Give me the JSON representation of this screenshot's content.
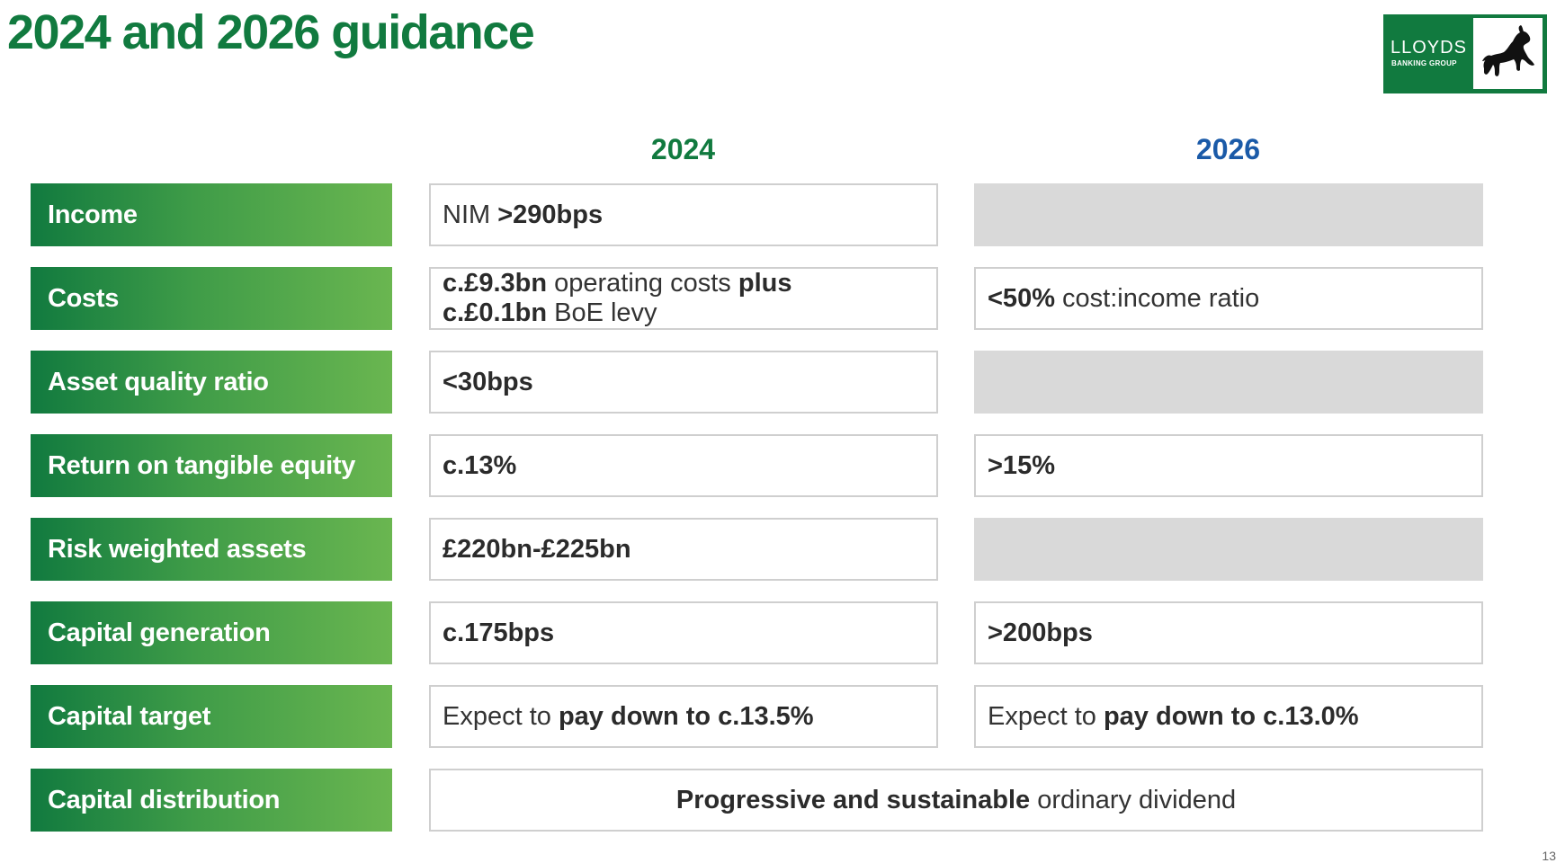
{
  "slide": {
    "title": "2024 and 2026 guidance",
    "page_number": "13"
  },
  "logo": {
    "name": "LLOYDS",
    "subtitle": "BANKING GROUP",
    "icon": "black-horse-icon"
  },
  "columns": {
    "y2024": "2024",
    "y2026": "2026"
  },
  "colors": {
    "primary_green": "#117a3f",
    "light_green": "#6ab650",
    "blue_heading": "#1a5aa8",
    "empty_cell": "#d9d9d9",
    "cell_border": "#cfcfcf"
  },
  "rows": [
    {
      "label": "Income",
      "c2024": {
        "p1": "NIM ",
        "b1": ">290bps"
      },
      "c2026": null
    },
    {
      "label": "Costs",
      "c2024": {
        "l1b1": "c.£9.3bn",
        "l1p1": " operating costs ",
        "l1b2": "plus",
        "l2b1": "c.£0.1bn",
        "l2p1": " BoE levy"
      },
      "c2026": {
        "b1": "<50%",
        "p1": " cost:income ratio"
      }
    },
    {
      "label": "Asset quality ratio",
      "c2024": {
        "b1": "<30bps"
      },
      "c2026": null
    },
    {
      "label": "Return on tangible equity",
      "c2024": {
        "b1": "c.13%"
      },
      "c2026": {
        "b1": ">15%"
      }
    },
    {
      "label": "Risk weighted assets",
      "c2024": {
        "b1": "£220bn-£225bn"
      },
      "c2026": null
    },
    {
      "label": "Capital generation",
      "c2024": {
        "b1": "c.175bps"
      },
      "c2026": {
        "b1": ">200bps"
      }
    },
    {
      "label": "Capital target",
      "c2024": {
        "p1": "Expect to ",
        "b1": "pay down to c.13.5%"
      },
      "c2026": {
        "p1": "Expect to ",
        "b1": "pay down to c.13.0%"
      }
    },
    {
      "label": "Capital distribution",
      "combined": {
        "b1": "Progressive and sustainable",
        "p1": " ordinary dividend"
      }
    }
  ]
}
